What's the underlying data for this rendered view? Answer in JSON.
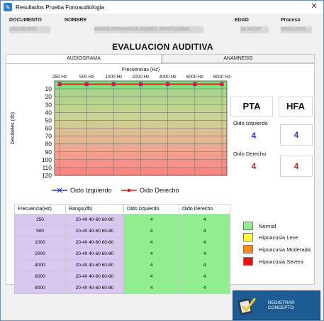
{
  "window": {
    "title": "Resultados Prueba Fonoaudiologia",
    "close_glyph": "✕",
    "app_icon": "app-icon"
  },
  "info": {
    "documento_label": "DOCUMENTO",
    "documento_value": "1001567893",
    "nombre_label": "NOMBRE",
    "nombre_value": "MARIA FERNANDA GOMEZ ARISTIZABAL",
    "edad_label": "EDAD",
    "edad_value": "34 AÑOS",
    "proceso_label": "Proceso",
    "proceso_value": "000012345"
  },
  "main_title": "EVALUACION AUDITIVA",
  "tabs": [
    {
      "label": "AUDIOGRAMA",
      "active": true
    },
    {
      "label": "ANAMNESIS",
      "active": false
    }
  ],
  "chart_data": {
    "type": "line",
    "title": "Frecuencias (Hz)",
    "ylabel": "Decibeles (db)",
    "x_tick_labels": [
      "250 Hz",
      "500 Hz",
      "1000 Hz",
      "2000 Hz",
      "4000 Hz",
      "6000 Hz",
      "8000 Hz"
    ],
    "y_ticks": [
      10,
      20,
      30,
      40,
      50,
      60,
      70,
      80,
      90,
      100,
      110,
      120
    ],
    "ylim": [
      0,
      120
    ],
    "y_inverted": true,
    "series": [
      {
        "name": "Oido Izquierdo",
        "color": "#1a3de0",
        "values": [
          4,
          4,
          4,
          4,
          4,
          4,
          4
        ]
      },
      {
        "name": "Oido Derecho",
        "color": "#e01818",
        "values": [
          4,
          4,
          4,
          4,
          4,
          4,
          4
        ]
      }
    ],
    "bands": [
      {
        "from": 0,
        "to": 10,
        "color": "#7fe07f"
      },
      {
        "from": 10,
        "to": 20,
        "color": "#a9d48a"
      },
      {
        "from": 20,
        "to": 30,
        "color": "#b6d48e"
      },
      {
        "from": 30,
        "to": 40,
        "color": "#c0d38f"
      },
      {
        "from": 40,
        "to": 50,
        "color": "#cbd192"
      },
      {
        "from": 50,
        "to": 60,
        "color": "#d3ca92"
      },
      {
        "from": 60,
        "to": 70,
        "color": "#dcc092"
      },
      {
        "from": 70,
        "to": 80,
        "color": "#e4b692"
      },
      {
        "from": 80,
        "to": 90,
        "color": "#eca990"
      },
      {
        "from": 90,
        "to": 100,
        "color": "#f39d8d"
      },
      {
        "from": 100,
        "to": 110,
        "color": "#f7918a"
      },
      {
        "from": 110,
        "to": 120,
        "color": "#fa8680"
      }
    ],
    "grid": true
  },
  "summary": {
    "pta_label": "PTA",
    "hfa_label": "HFA",
    "left_label": "Oido Izquierdo",
    "right_label": "Oido Derecho",
    "pta_left": "4",
    "hfa_left": "4",
    "pta_right": "4",
    "hfa_right": "4"
  },
  "table": {
    "headers": [
      "Frecuencia(Hz)",
      "Rango(db)",
      "Oido Izquierdo",
      "Oido Derecho"
    ],
    "rows": [
      [
        "250",
        "20-40 40-60 60-80",
        "4",
        "4"
      ],
      [
        "500",
        "20-40 40-60 60-80",
        "4",
        "4"
      ],
      [
        "1000",
        "20-40 40-60 60-80",
        "4",
        "4"
      ],
      [
        "2000",
        "20-40 40-60 60-80",
        "4",
        "4"
      ],
      [
        "4000",
        "20-40 40-60 60-80",
        "4",
        "4"
      ],
      [
        "6000",
        "20-40 40-60 60-80",
        "4",
        "4"
      ],
      [
        "8000",
        "20-40 40-60 60-80",
        "4",
        "4"
      ]
    ]
  },
  "severity_legend": [
    {
      "label": "Normal",
      "color": "#90ee90"
    },
    {
      "label": "Hipoacusia Leve",
      "color": "#ffff33"
    },
    {
      "label": "Hipoacusia Moderada",
      "color": "#ff8c1a"
    },
    {
      "label": "Hipoacusia Severa",
      "color": "#ee1111"
    }
  ],
  "register_button": {
    "label": "REGISTRAR CONCEPTO",
    "icon": "clipboard-check-icon"
  }
}
